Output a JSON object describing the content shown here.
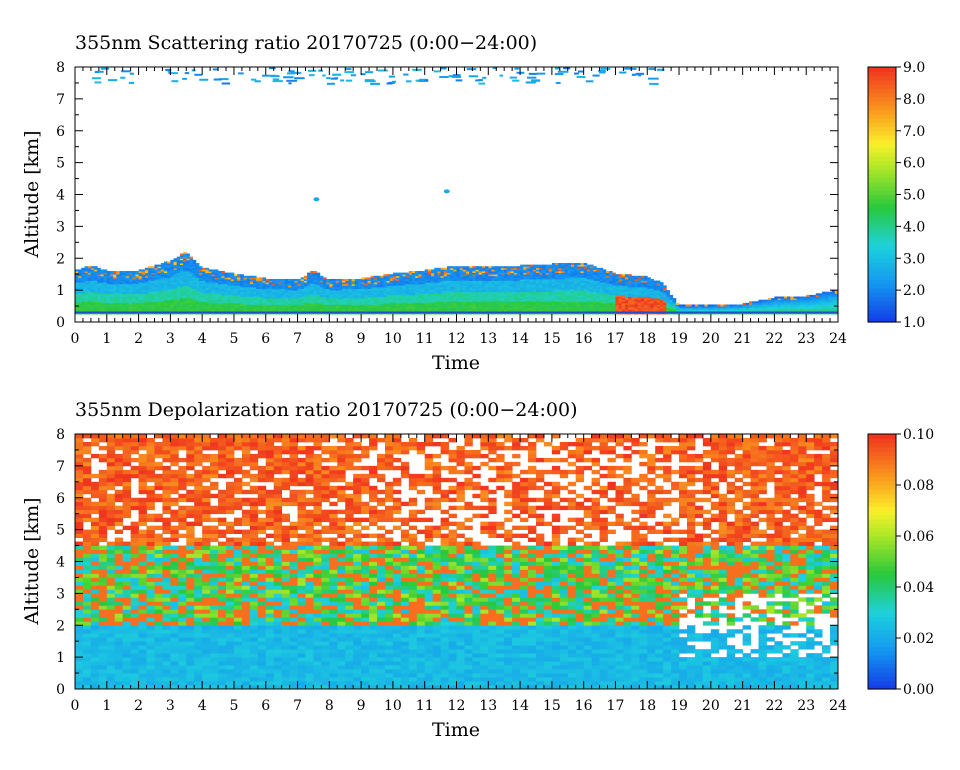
{
  "chart_data": [
    {
      "type": "heatmap",
      "title": "355nm Scattering ratio  20170725 (0:00−24:00)",
      "xlabel": "Time",
      "ylabel": "Altitude [km]",
      "xlim": [
        0,
        24
      ],
      "ylim": [
        0,
        8
      ],
      "xticks": [
        "0",
        "1",
        "2",
        "3",
        "4",
        "5",
        "6",
        "7",
        "8",
        "9",
        "10",
        "11",
        "12",
        "13",
        "14",
        "15",
        "16",
        "17",
        "18",
        "19",
        "20",
        "21",
        "22",
        "23",
        "24"
      ],
      "yticks": [
        "0",
        "1",
        "2",
        "3",
        "4",
        "5",
        "6",
        "7",
        "8"
      ],
      "colorbar": {
        "min": 1.0,
        "max": 9.0,
        "ticks": [
          "1.0",
          "2.0",
          "3.0",
          "4.0",
          "5.0",
          "6.0",
          "7.0",
          "8.0",
          "9.0"
        ]
      },
      "layer_top_km": [
        [
          0,
          1.6
        ],
        [
          0.5,
          1.75
        ],
        [
          1,
          1.6
        ],
        [
          2,
          1.6
        ],
        [
          3,
          1.9
        ],
        [
          3.5,
          2.2
        ],
        [
          4,
          1.7
        ],
        [
          5,
          1.5
        ],
        [
          6,
          1.35
        ],
        [
          7,
          1.3
        ],
        [
          7.5,
          1.6
        ],
        [
          8,
          1.3
        ],
        [
          9,
          1.35
        ],
        [
          10,
          1.5
        ],
        [
          11,
          1.6
        ],
        [
          12,
          1.75
        ],
        [
          13,
          1.7
        ],
        [
          14,
          1.75
        ],
        [
          15,
          1.8
        ],
        [
          16,
          1.85
        ],
        [
          17,
          1.5
        ],
        [
          18,
          1.4
        ],
        [
          18.5,
          1.2
        ],
        [
          19,
          0.5
        ],
        [
          19.5,
          0.5
        ],
        [
          20,
          0.5
        ],
        [
          21,
          0.55
        ],
        [
          22,
          0.75
        ],
        [
          23,
          0.8
        ],
        [
          24,
          1.0
        ]
      ],
      "upper_features": [
        {
          "t": [
            2.5,
            4
          ],
          "z": 7.5,
          "note": "scattered echoes 7-8 km"
        },
        {
          "t": [
            7.5,
            7.7
          ],
          "z": 3.85
        },
        {
          "t": [
            11.6,
            11.8
          ],
          "z": 4.1
        }
      ]
    },
    {
      "type": "heatmap",
      "title": "355nm Depolarization ratio  20170725 (0:00−24:00)",
      "xlabel": "Time",
      "ylabel": "Altitude [km]",
      "xlim": [
        0,
        24
      ],
      "ylim": [
        0,
        8
      ],
      "xticks": [
        "0",
        "1",
        "2",
        "3",
        "4",
        "5",
        "6",
        "7",
        "8",
        "9",
        "10",
        "11",
        "12",
        "13",
        "14",
        "15",
        "16",
        "17",
        "18",
        "19",
        "20",
        "21",
        "22",
        "23",
        "24"
      ],
      "yticks": [
        "0",
        "1",
        "2",
        "3",
        "4",
        "5",
        "6",
        "7",
        "8"
      ],
      "colorbar": {
        "min": 0.0,
        "max": 0.1,
        "ticks": [
          "0.00",
          "0.02",
          "0.04",
          "0.06",
          "0.08",
          "0.10"
        ]
      }
    }
  ]
}
